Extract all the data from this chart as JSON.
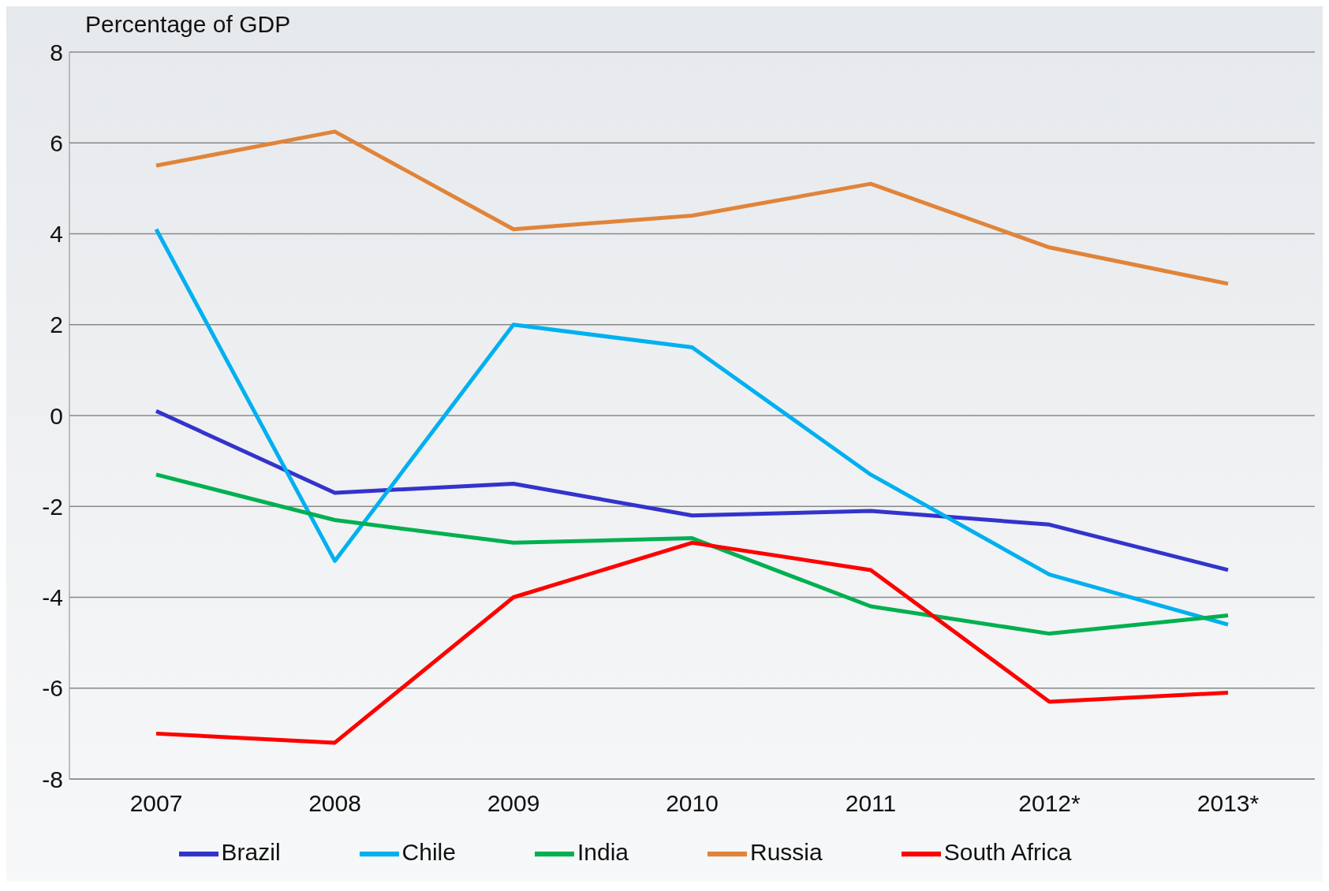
{
  "chart_data": {
    "type": "line",
    "ylabel": "Percentage of GDP",
    "categories": [
      "2007",
      "2008",
      "2009",
      "2010",
      "2011",
      "2012*",
      "2013*"
    ],
    "series": [
      {
        "name": "Brazil",
        "color": "#3333cc",
        "values": [
          0.1,
          -1.7,
          -1.5,
          -2.2,
          -2.1,
          -2.4,
          -3.4
        ]
      },
      {
        "name": "Chile",
        "color": "#00b0f0",
        "values": [
          4.1,
          -3.2,
          2.0,
          1.5,
          -1.3,
          -3.5,
          -4.6
        ]
      },
      {
        "name": "India",
        "color": "#00b050",
        "values": [
          -1.3,
          -2.3,
          -2.8,
          -2.7,
          -4.2,
          -4.8,
          -4.4
        ]
      },
      {
        "name": "Russia",
        "color": "#e0843a",
        "values": [
          5.5,
          6.25,
          4.1,
          4.4,
          5.1,
          3.7,
          2.9
        ]
      },
      {
        "name": "South Africa",
        "color": "#ff0000",
        "values": [
          -7.0,
          -7.2,
          -4.0,
          -2.8,
          -3.4,
          -6.3,
          -6.1
        ]
      }
    ],
    "ylim": [
      -8,
      8
    ],
    "yticks": [
      -8,
      -6,
      -4,
      -2,
      0,
      2,
      4,
      6,
      8
    ],
    "grid": "y",
    "legend": "bottom",
    "marker": "none",
    "line_style": "solid"
  }
}
